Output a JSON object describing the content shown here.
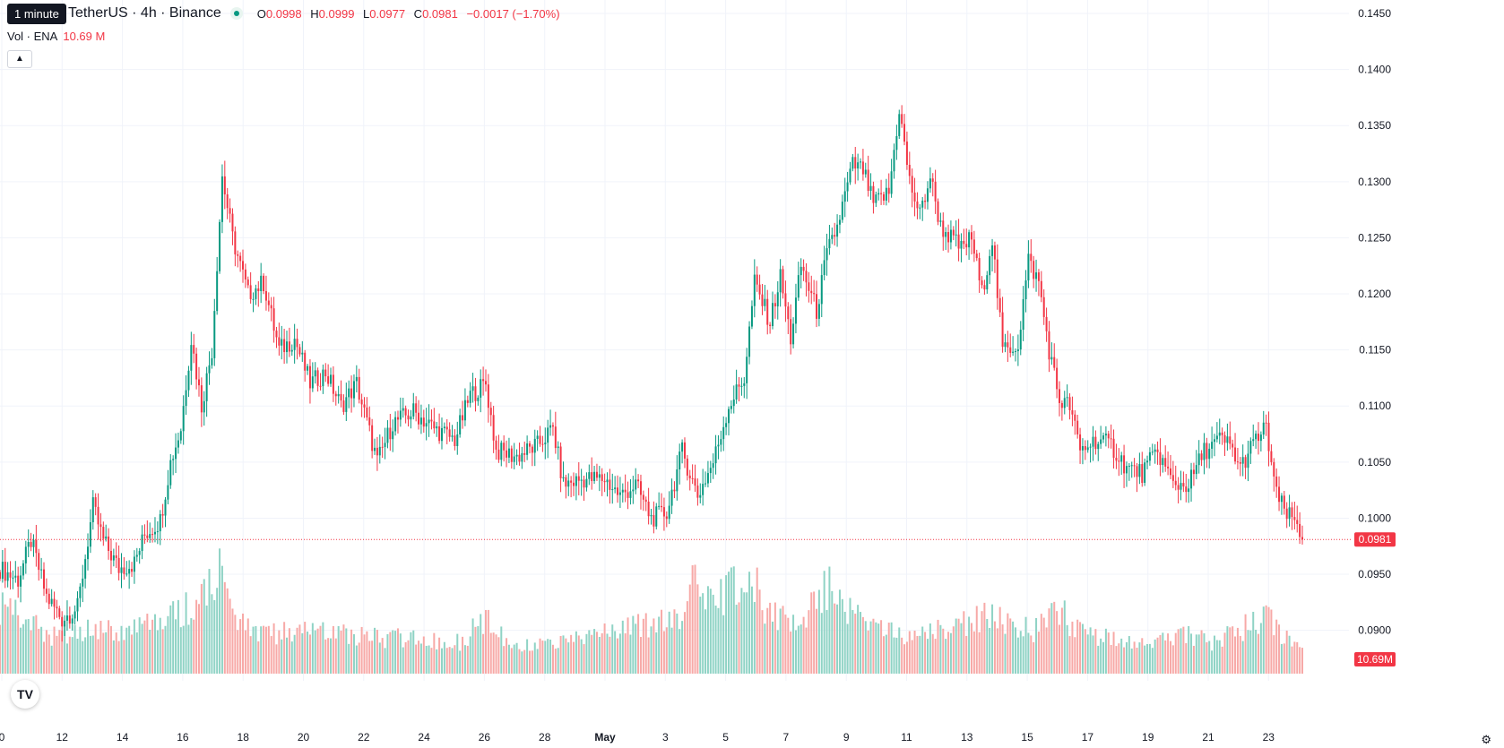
{
  "header": {
    "tooltip": "1 minute",
    "symbol": "TetherUS · 4h · Binance",
    "open_label": "O",
    "open": "0.0998",
    "high_label": "H",
    "high": "0.0999",
    "low_label": "L",
    "low": "0.0977",
    "close_label": "C",
    "close": "0.0981",
    "change": "−0.0017 (−1.70%)",
    "vol_label": "Vol · ENA",
    "vol_value": "10.69 M",
    "collapse_icon": "chevron-up-icon",
    "logo": "TV",
    "settings_icon": "gear-icon"
  },
  "chart_data": {
    "type": "candlestick",
    "colors": {
      "up": "#089981",
      "down": "#f23645",
      "vol_up": "#8fd3c5",
      "vol_down": "#f7a9a7"
    },
    "ylim": [
      0.0855,
      0.1462
    ],
    "y_ticks": [
      "0.1450",
      "0.1400",
      "0.1350",
      "0.1300",
      "0.1250",
      "0.1200",
      "0.1150",
      "0.1100",
      "0.1050",
      "0.1000",
      "0.0950",
      "0.0900"
    ],
    "x_ticks": [
      "0",
      "12",
      "14",
      "16",
      "18",
      "20",
      "22",
      "24",
      "26",
      "28",
      "May",
      "3",
      "5",
      "7",
      "9",
      "11",
      "13",
      "15",
      "17",
      "19",
      "21",
      "23"
    ],
    "last_price_label": "0.0981",
    "last_volume_label": "10.69M",
    "grid": true,
    "price_anchors": [
      [
        0,
        0.0955
      ],
      [
        7,
        0.0945
      ],
      [
        12,
        0.098
      ],
      [
        18,
        0.093
      ],
      [
        24,
        0.091
      ],
      [
        30,
        0.092
      ],
      [
        36,
        0.101
      ],
      [
        40,
        0.098
      ],
      [
        46,
        0.0955
      ],
      [
        52,
        0.096
      ],
      [
        56,
        0.0985
      ],
      [
        62,
        0.0998
      ],
      [
        66,
        0.105
      ],
      [
        70,
        0.108
      ],
      [
        74,
        0.116
      ],
      [
        78,
        0.11
      ],
      [
        82,
        0.115
      ],
      [
        86,
        0.1305
      ],
      [
        90,
        0.125
      ],
      [
        96,
        0.12
      ],
      [
        102,
        0.121
      ],
      [
        108,
        0.115
      ],
      [
        114,
        0.116
      ],
      [
        120,
        0.112
      ],
      [
        126,
        0.113
      ],
      [
        132,
        0.11
      ],
      [
        138,
        0.112
      ],
      [
        146,
        0.105
      ],
      [
        152,
        0.1085
      ],
      [
        160,
        0.1095
      ],
      [
        168,
        0.108
      ],
      [
        176,
        0.107
      ],
      [
        182,
        0.111
      ],
      [
        188,
        0.112
      ],
      [
        192,
        0.106
      ],
      [
        200,
        0.1055
      ],
      [
        208,
        0.1065
      ],
      [
        214,
        0.108
      ],
      [
        218,
        0.103
      ],
      [
        226,
        0.1035
      ],
      [
        234,
        0.1035
      ],
      [
        240,
        0.102
      ],
      [
        246,
        0.103
      ],
      [
        252,
        0.1
      ],
      [
        258,
        0.1005
      ],
      [
        264,
        0.106
      ],
      [
        270,
        0.102
      ],
      [
        276,
        0.105
      ],
      [
        282,
        0.11
      ],
      [
        288,
        0.1125
      ],
      [
        292,
        0.121
      ],
      [
        298,
        0.1175
      ],
      [
        302,
        0.1215
      ],
      [
        306,
        0.116
      ],
      [
        310,
        0.1225
      ],
      [
        316,
        0.1185
      ],
      [
        320,
        0.1235
      ],
      [
        324,
        0.126
      ],
      [
        330,
        0.1315
      ],
      [
        334,
        0.131
      ],
      [
        338,
        0.128
      ],
      [
        344,
        0.129
      ],
      [
        348,
        0.1365
      ],
      [
        352,
        0.13
      ],
      [
        356,
        0.127
      ],
      [
        360,
        0.1305
      ],
      [
        364,
        0.126
      ],
      [
        368,
        0.125
      ],
      [
        372,
        0.124
      ],
      [
        376,
        0.125
      ],
      [
        380,
        0.12
      ],
      [
        384,
        0.125
      ],
      [
        388,
        0.115
      ],
      [
        394,
        0.1155
      ],
      [
        398,
        0.123
      ],
      [
        402,
        0.121
      ],
      [
        406,
        0.115
      ],
      [
        410,
        0.1105
      ],
      [
        414,
        0.11
      ],
      [
        418,
        0.106
      ],
      [
        424,
        0.107
      ],
      [
        430,
        0.1065
      ],
      [
        436,
        0.1045
      ],
      [
        442,
        0.104
      ],
      [
        448,
        0.106
      ],
      [
        454,
        0.103
      ],
      [
        460,
        0.103
      ],
      [
        466,
        0.106
      ],
      [
        472,
        0.107
      ],
      [
        476,
        0.1065
      ],
      [
        480,
        0.1045
      ],
      [
        486,
        0.107
      ],
      [
        490,
        0.108
      ],
      [
        494,
        0.102
      ],
      [
        498,
        0.1003
      ],
      [
        502,
        0.0995
      ],
      [
        504,
        0.0981
      ]
    ],
    "volume_profile": [
      [
        0,
        0.55
      ],
      [
        20,
        0.3
      ],
      [
        40,
        0.35
      ],
      [
        60,
        0.4
      ],
      [
        78,
        0.6
      ],
      [
        86,
        0.95
      ],
      [
        92,
        0.4
      ],
      [
        100,
        0.3
      ],
      [
        120,
        0.35
      ],
      [
        140,
        0.3
      ],
      [
        180,
        0.25
      ],
      [
        186,
        0.45
      ],
      [
        200,
        0.2
      ],
      [
        226,
        0.3
      ],
      [
        250,
        0.4
      ],
      [
        262,
        0.45
      ],
      [
        270,
        0.75
      ],
      [
        276,
        0.6
      ],
      [
        292,
        0.8
      ],
      [
        296,
        0.45
      ],
      [
        310,
        0.45
      ],
      [
        320,
        0.7
      ],
      [
        330,
        0.45
      ],
      [
        340,
        0.35
      ],
      [
        350,
        0.3
      ],
      [
        366,
        0.35
      ],
      [
        380,
        0.45
      ],
      [
        400,
        0.35
      ],
      [
        410,
        0.5
      ],
      [
        420,
        0.3
      ],
      [
        440,
        0.25
      ],
      [
        460,
        0.3
      ],
      [
        470,
        0.25
      ],
      [
        480,
        0.35
      ],
      [
        490,
        0.45
      ],
      [
        500,
        0.25
      ]
    ]
  }
}
